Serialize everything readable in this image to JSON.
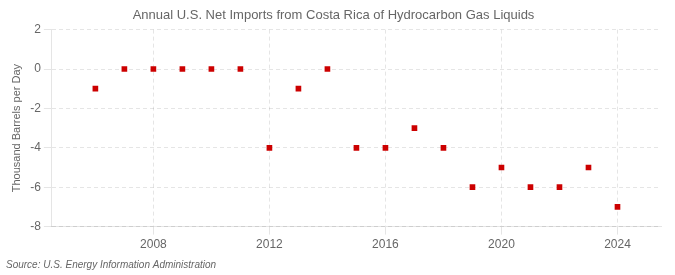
{
  "chart_data": {
    "type": "scatter",
    "title": "Annual U.S. Net Imports from Costa Rica of Hydrocarbon Gas Liquids",
    "ylabel": "Thousand Barrels per Day",
    "source": "Source: U.S. Energy Information Administration",
    "x": [
      2006,
      2007,
      2008,
      2009,
      2010,
      2011,
      2012,
      2013,
      2014,
      2015,
      2016,
      2017,
      2018,
      2019,
      2020,
      2021,
      2022,
      2023,
      2024
    ],
    "values": [
      -1,
      0,
      0,
      0,
      0,
      0,
      -4,
      -1,
      0,
      -4,
      -4,
      -3,
      -4,
      -6,
      -5,
      -6,
      -6,
      -5,
      -7
    ],
    "color": "#cc0000",
    "marker": "square",
    "xlim": [
      2004.5,
      2025.5
    ],
    "xticks": [
      2008,
      2012,
      2016,
      2020,
      2024
    ],
    "ylim": [
      -8,
      2
    ],
    "yticks": [
      -8,
      -6,
      -4,
      -2,
      0,
      2
    ],
    "grid": true
  }
}
